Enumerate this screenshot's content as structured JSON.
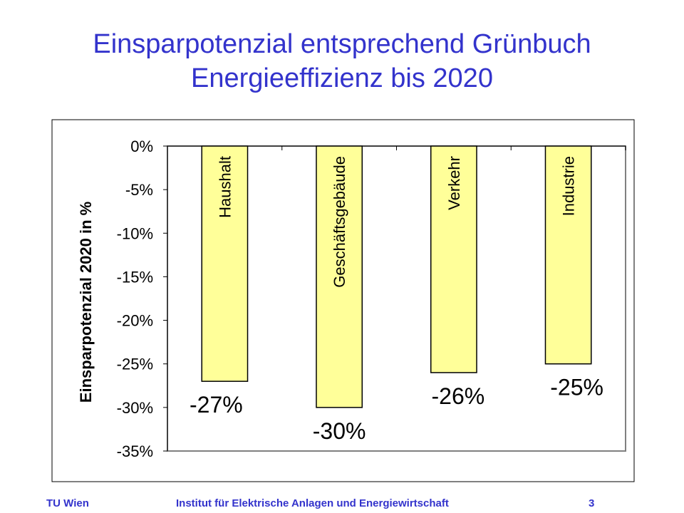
{
  "slide": {
    "title_line1": "Einsparpotenzial entsprechend Grünbuch",
    "title_line2": "Energieeffizienz bis 2020"
  },
  "footer": {
    "left": "TU Wien",
    "center": "Institut für Elektrische Anlagen und Energiewirtschaft",
    "page": "3"
  },
  "colors": {
    "title": "#3333CC",
    "bar_fill": "#FFFF99",
    "bar_stroke": "#000000"
  },
  "chart_data": {
    "type": "bar",
    "categories": [
      "Haushalt",
      "Geschäftsgebäude",
      "Verkehr",
      "Industrie"
    ],
    "values": [
      -27,
      -30,
      -26,
      -25
    ],
    "data_labels": [
      "-27%",
      "-30%",
      "-26%",
      "-25%"
    ],
    "ylabel": "Einsparpotenzial 2020 in %",
    "ylim": [
      -35,
      0
    ],
    "yticks": [
      0,
      -5,
      -10,
      -15,
      -20,
      -25,
      -30,
      -35
    ],
    "ytick_labels": [
      "0%",
      "-5%",
      "-10%",
      "-15%",
      "-20%",
      "-25%",
      "-30%",
      "-35%"
    ],
    "grid": false,
    "legend": "none"
  }
}
